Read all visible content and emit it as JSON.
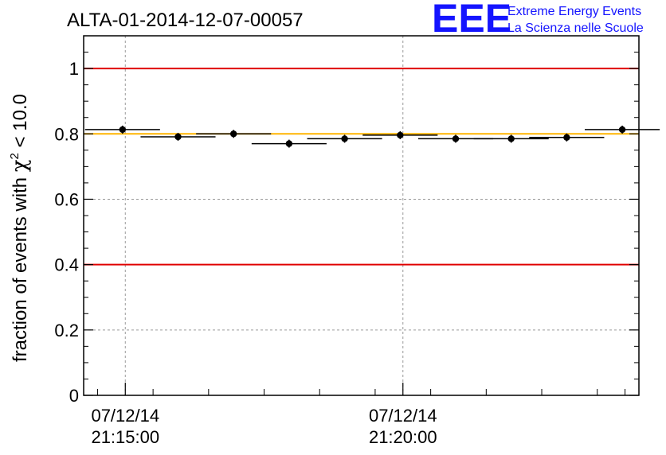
{
  "chart_data": {
    "type": "scatter",
    "title": "ALTA-01-2014-12-07-00057",
    "ylabel_prefix": "fraction of events with ",
    "ylabel_symbol": "χ",
    "ylabel_exp": "2",
    "ylabel_suffix": " < 10.0",
    "ylim": [
      0,
      1.1
    ],
    "y_ticks": [
      "0",
      "0.2",
      "0.4",
      "0.6",
      "0.8",
      "1"
    ],
    "y_tick_values": [
      0,
      0.2,
      0.4,
      0.6,
      0.8,
      1.0
    ],
    "x_labels": [
      {
        "date": "07/12/14",
        "time": "21:15:00",
        "minute": 0
      },
      {
        "date": "07/12/14",
        "time": "21:20:00",
        "minute": 5
      }
    ],
    "xlim_minutes": [
      -0.75,
      9.25
    ],
    "bin_width_minutes": 0.5,
    "x_minutes": [
      -0.5,
      0.5,
      1.5,
      2.5,
      3.5,
      4.5,
      5.5,
      6.5,
      7.5,
      8.5,
      9.0
    ],
    "points": [
      {
        "x": -0.05,
        "y": 0.813
      },
      {
        "x": 0.95,
        "y": 0.791
      },
      {
        "x": 1.95,
        "y": 0.8
      },
      {
        "x": 2.95,
        "y": 0.77
      },
      {
        "x": 3.95,
        "y": 0.785
      },
      {
        "x": 4.95,
        "y": 0.796
      },
      {
        "x": 5.95,
        "y": 0.785
      },
      {
        "x": 6.95,
        "y": 0.785
      },
      {
        "x": 7.95,
        "y": 0.789
      },
      {
        "x": 8.95,
        "y": 0.813
      }
    ],
    "reference_lines": [
      {
        "y": 1.0,
        "color": "#e00000"
      },
      {
        "y": 0.8,
        "color": "#ffb400"
      },
      {
        "y": 0.4,
        "color": "#e00000"
      }
    ],
    "grid": true,
    "logo": {
      "mark": "EEE",
      "line1": "Extreme Energy Events",
      "line2": "La Scienza nelle Scuole",
      "color": "#1414ff"
    }
  }
}
